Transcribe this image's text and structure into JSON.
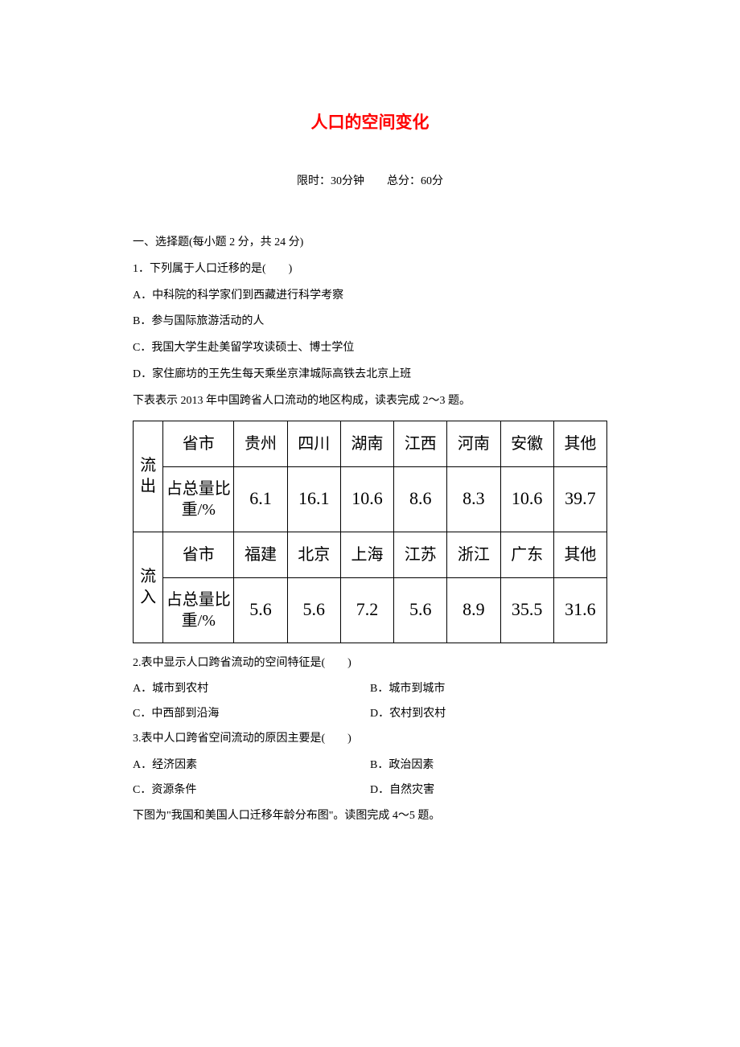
{
  "title": "人口的空间变化",
  "title_color": "#ff0000",
  "subtitle_prefix": "限时：30",
  "subtitle_unit1": "分钟",
  "subtitle_gap": "　　",
  "subtitle_total": "总分：60",
  "subtitle_unit2": "分",
  "section1": "一、选择题(每小题 2 分，共 24 分)",
  "q1": "1．下列属于人口迁移的是(　　)",
  "q1_a": "A．中科院的科学家们到西藏进行科学考察",
  "q1_b": "B．参与国际旅游活动的人",
  "q1_c": "C．我国大学生赴美留学攻读硕士、博士学位",
  "q1_d": "D．家住廊坊的王先生每天乘坐京津城际高铁去北京上班",
  "table_intro": "下表表示 2013 年中国跨省人口流动的地区构成，读表完成 2～3 题。",
  "table": {
    "border_color": "#000000",
    "out_label": "流出",
    "in_label": "流入",
    "row_header1": "省市",
    "row_header2": "占总量比重/%",
    "out_provinces": [
      "贵州",
      "四川",
      "湖南",
      "江西",
      "河南",
      "安徽",
      "其他"
    ],
    "out_values": [
      "6.1",
      "16.1",
      "10.6",
      "8.6",
      "8.3",
      "10.6",
      "39.7"
    ],
    "in_provinces": [
      "福建",
      "北京",
      "上海",
      "江苏",
      "浙江",
      "广东",
      "其他"
    ],
    "in_values": [
      "5.6",
      "5.6",
      "7.2",
      "5.6",
      "8.9",
      "35.5",
      "31.6"
    ]
  },
  "q2": "2.表中显示人口跨省流动的空间特征是(　　)",
  "q2_a": "A．城市到农村",
  "q2_b": "B．城市到城市",
  "q2_c": "C．中西部到沿海",
  "q2_d": "D．农村到农村",
  "q3": "3.表中人口跨省空间流动的原因主要是(　　)",
  "q3_a": "A．经济因素",
  "q3_b": "B．政治因素",
  "q3_c": "C．资源条件",
  "q3_d": "D．自然灾害",
  "figure_intro": "下图为\"我国和美国人口迁移年龄分布图\"。读图完成 4～5 题。"
}
